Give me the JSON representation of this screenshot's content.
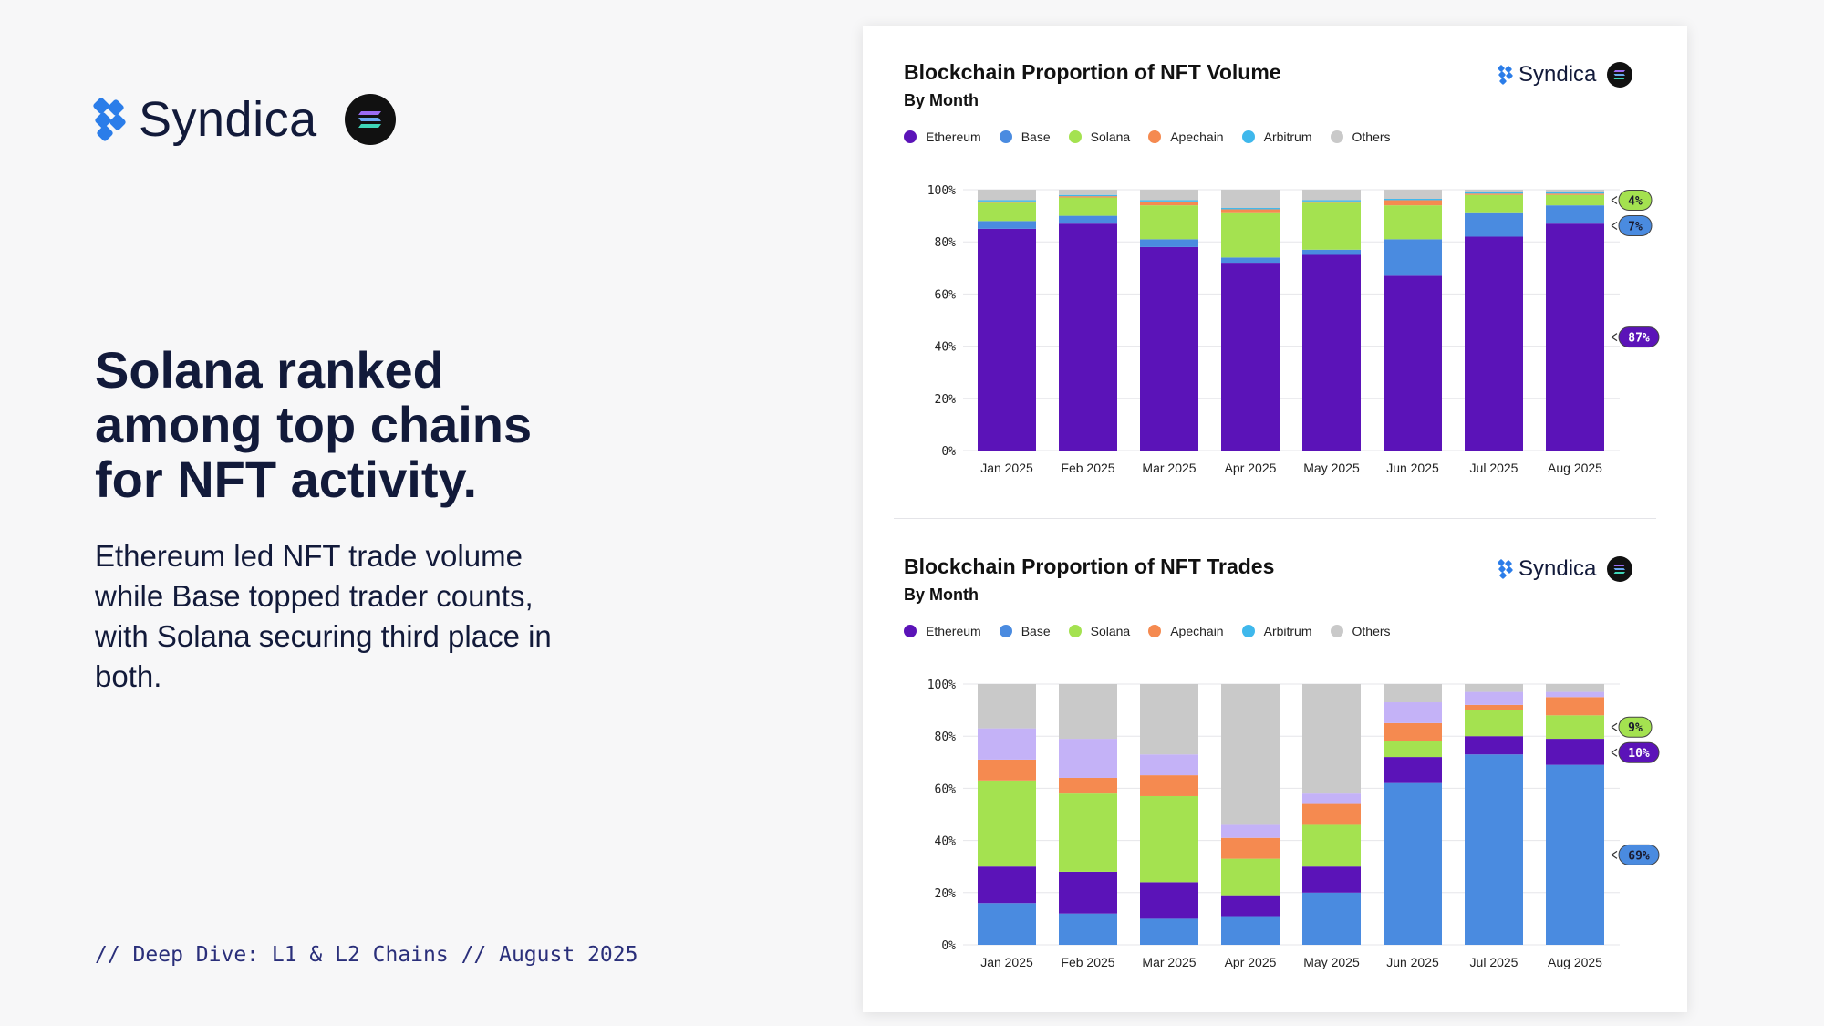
{
  "brand": {
    "name": "Syndica"
  },
  "headline": "Solana ranked among top chains for NFT activity.",
  "subtext": "Ethereum led NFT trade volume while Base topped trader counts, with Solana securing third place in both.",
  "footer": "// Deep Dive: L1 & L2 Chains // August 2025",
  "colors": {
    "Ethereum": "#5b13b8",
    "Base": "#4a8be0",
    "Solana": "#a4e250",
    "Apechain": "#f58a50",
    "Arbitrum": "#3fb8ec",
    "Others": "#c9c9c9",
    "Unlabeled": "#c4b2f7"
  },
  "chart_data": [
    {
      "type": "bar",
      "stacked": true,
      "title": "Blockchain Proportion of NFT Volume",
      "subtitle": "By Month",
      "logo_label": "Syndica",
      "xlabel": "",
      "ylabel": "",
      "ylim": [
        0,
        100
      ],
      "ytick_labels": [
        "0%",
        "20%",
        "40%",
        "60%",
        "80%",
        "100%"
      ],
      "categories": [
        "Jan 2025",
        "Feb 2025",
        "Mar 2025",
        "Apr 2025",
        "May 2025",
        "Jun 2025",
        "Jul 2025",
        "Aug 2025"
      ],
      "legend": [
        "Ethereum",
        "Base",
        "Solana",
        "Apechain",
        "Arbitrum",
        "Others"
      ],
      "legend_position": "top-left",
      "grid": true,
      "series": [
        {
          "name": "Ethereum",
          "values": [
            85,
            87,
            78,
            72,
            75,
            67,
            82,
            87
          ]
        },
        {
          "name": "Base",
          "values": [
            3,
            3,
            3,
            2,
            2,
            14,
            9,
            7
          ]
        },
        {
          "name": "Solana",
          "values": [
            7,
            7,
            13,
            17,
            18,
            13,
            7,
            4
          ]
        },
        {
          "name": "Apechain",
          "values": [
            0.5,
            0.5,
            1.5,
            1.5,
            0.5,
            2,
            0.5,
            0.5
          ]
        },
        {
          "name": "Arbitrum",
          "values": [
            0.5,
            0.5,
            0.5,
            0.5,
            0.5,
            0.5,
            0.5,
            0.5
          ]
        },
        {
          "name": "Others",
          "values": [
            4,
            2,
            4,
            7,
            4,
            3.5,
            1,
            1
          ]
        }
      ],
      "end_labels": [
        {
          "text": "4%",
          "series": "Solana"
        },
        {
          "text": "7%",
          "series": "Base"
        },
        {
          "text": "87%",
          "series": "Ethereum"
        }
      ]
    },
    {
      "type": "bar",
      "stacked": true,
      "title": "Blockchain Proportion of NFT Trades",
      "subtitle": "By Month",
      "logo_label": "Syndica",
      "xlabel": "",
      "ylabel": "",
      "ylim": [
        0,
        100
      ],
      "ytick_labels": [
        "0%",
        "20%",
        "40%",
        "60%",
        "80%",
        "100%"
      ],
      "categories": [
        "Jan 2025",
        "Feb 2025",
        "Mar 2025",
        "Apr 2025",
        "May 2025",
        "Jun 2025",
        "Jul 2025",
        "Aug 2025"
      ],
      "legend": [
        "Ethereum",
        "Base",
        "Solana",
        "Apechain",
        "Arbitrum",
        "Others"
      ],
      "legend_position": "top-left",
      "grid": true,
      "series": [
        {
          "name": "Base",
          "values": [
            16,
            12,
            10,
            11,
            20,
            62,
            73,
            69
          ]
        },
        {
          "name": "Ethereum",
          "values": [
            14,
            16,
            14,
            8,
            10,
            10,
            7,
            10
          ]
        },
        {
          "name": "Solana",
          "values": [
            33,
            30,
            33,
            14,
            16,
            6,
            10,
            9
          ]
        },
        {
          "name": "Apechain",
          "values": [
            8,
            6,
            8,
            8,
            8,
            7,
            2,
            7
          ]
        },
        {
          "name": "Unlabeled",
          "values": [
            12,
            15,
            8,
            5,
            4,
            8,
            5,
            2
          ]
        },
        {
          "name": "Others",
          "values": [
            17,
            21,
            27,
            54,
            42,
            7,
            3,
            3
          ]
        }
      ],
      "end_labels": [
        {
          "text": "9%",
          "series": "Solana"
        },
        {
          "text": "10%",
          "series": "Ethereum"
        },
        {
          "text": "69%",
          "series": "Base"
        }
      ]
    }
  ]
}
